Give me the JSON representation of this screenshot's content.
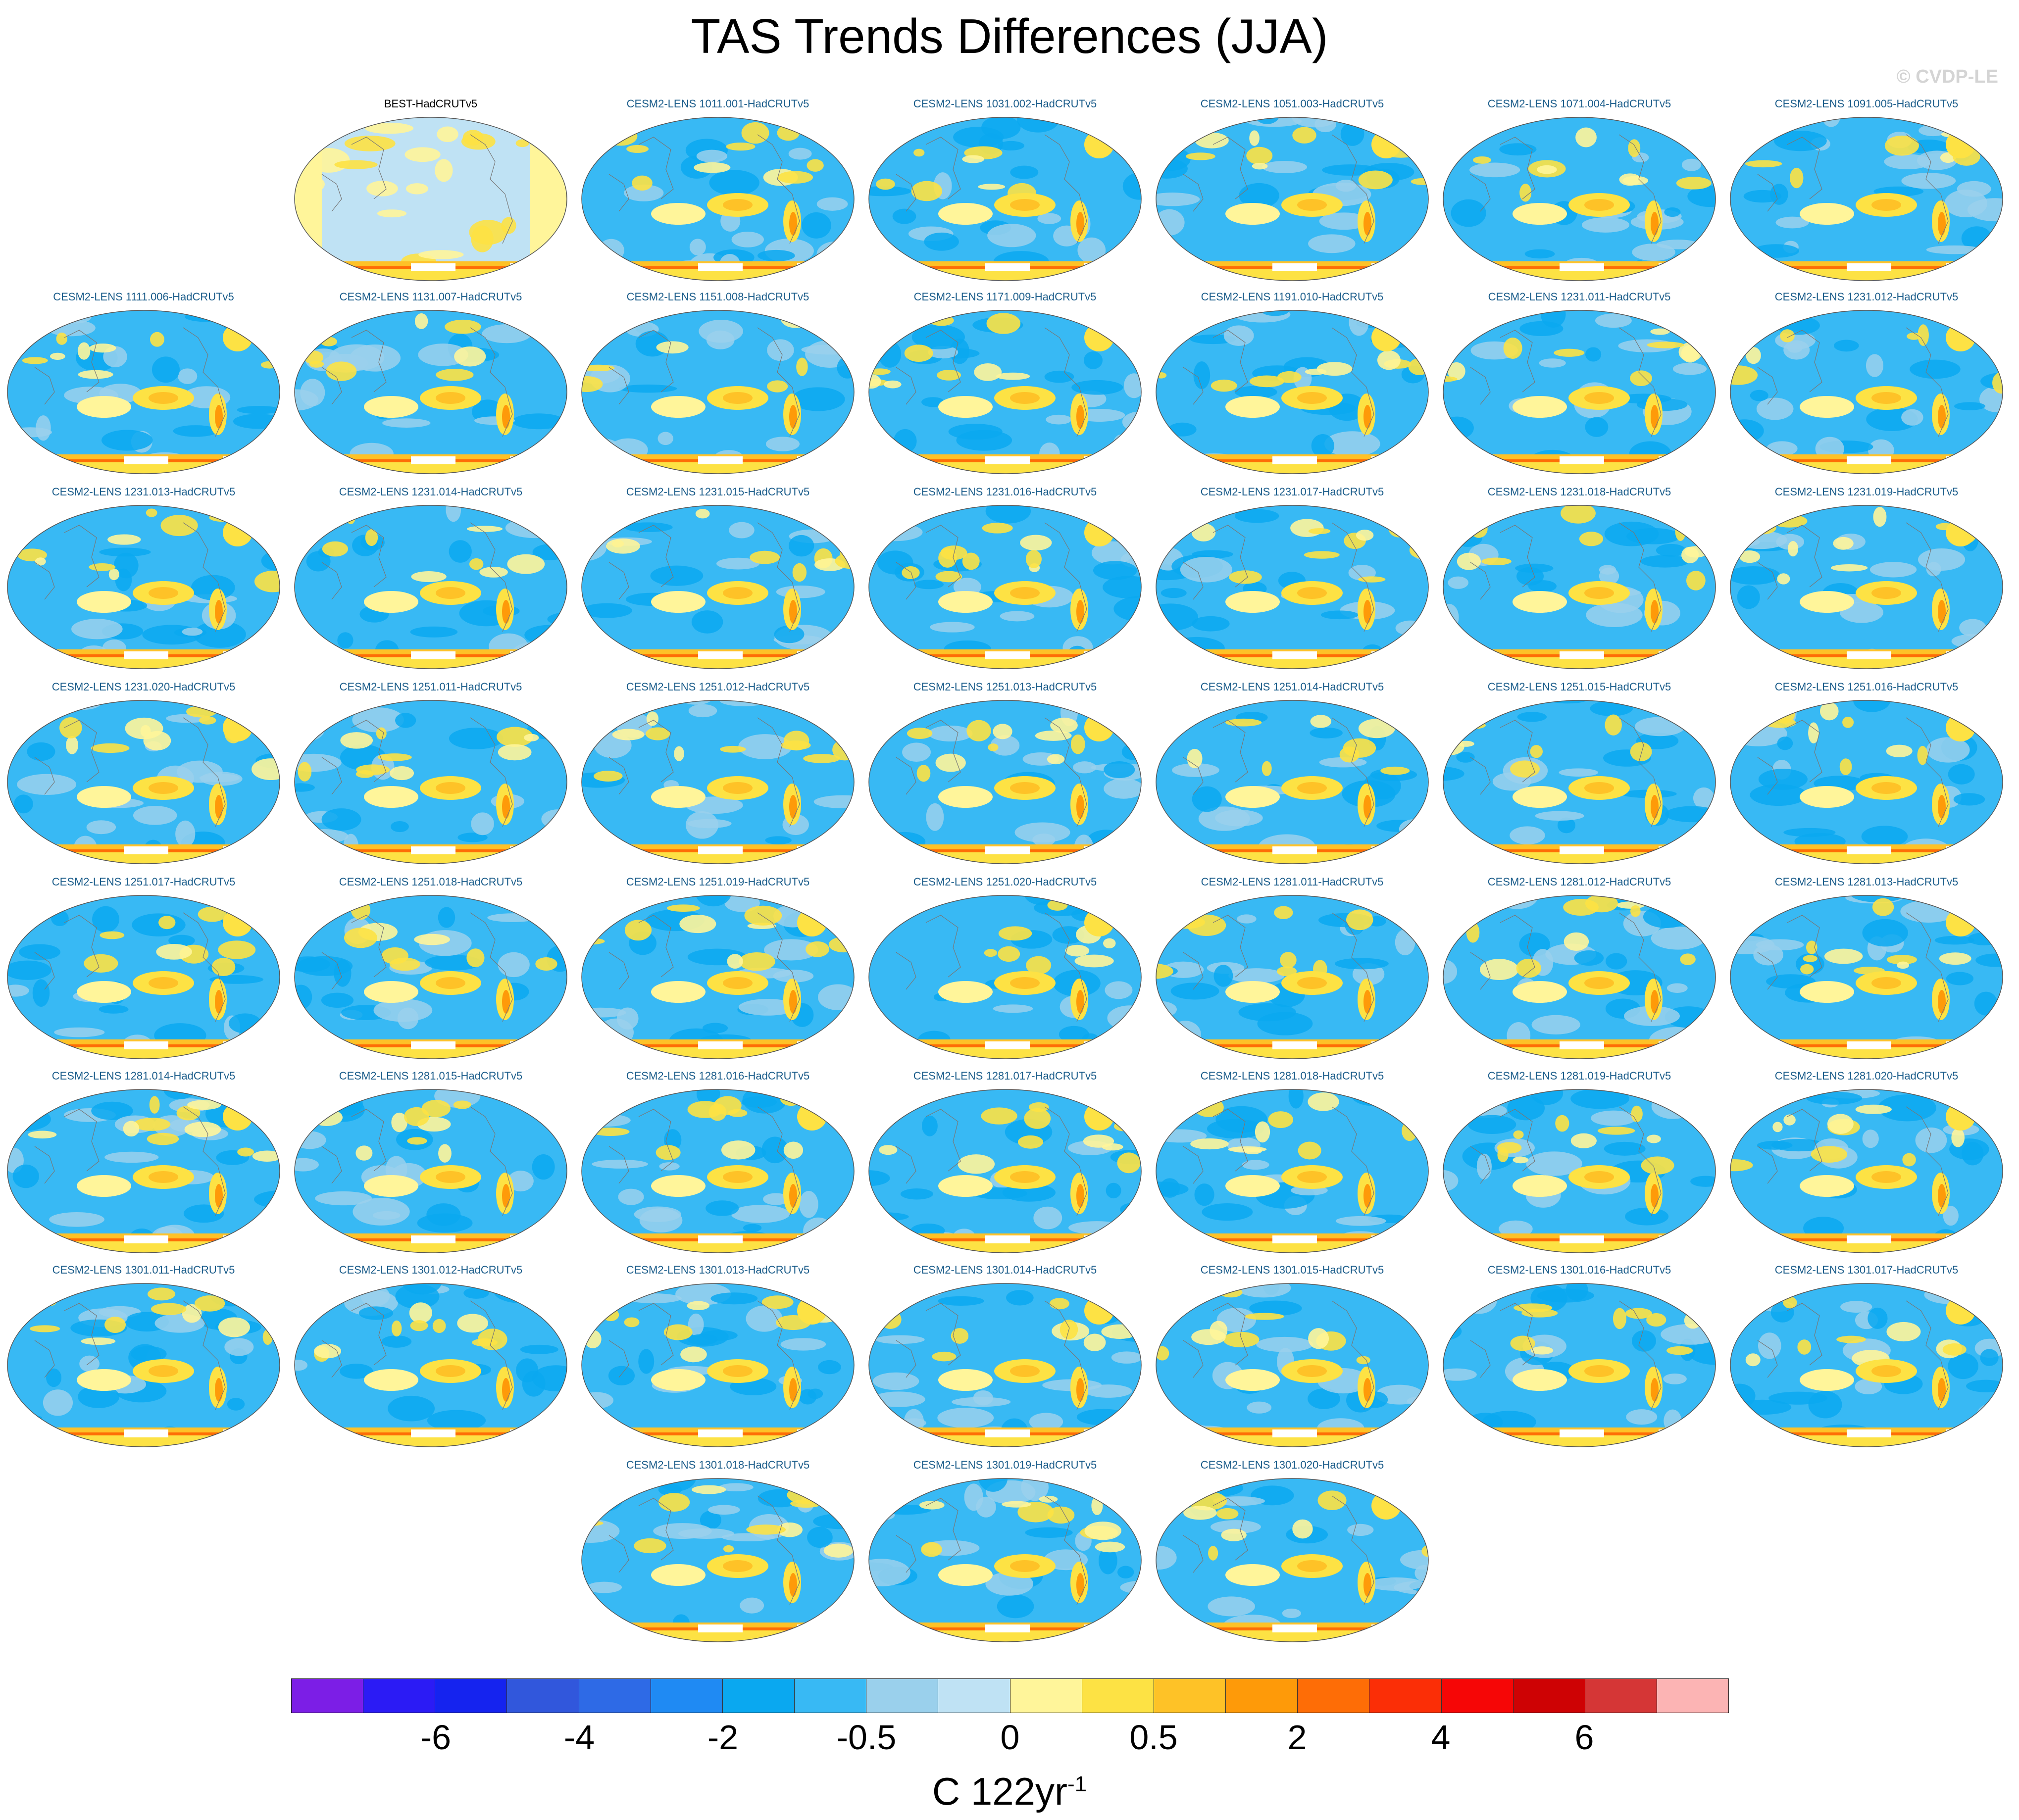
{
  "title": "TAS Trends Differences (JJA)",
  "watermark": "© CVDP-LE",
  "colorbar": {
    "ticks": [
      "-6",
      "-4",
      "-2",
      "-0.5",
      "0",
      "0.5",
      "2",
      "4",
      "6"
    ],
    "units_base": "C 122yr",
    "units_exp": "-1",
    "colors": [
      "#7c1ee6",
      "#2b1bf5",
      "#1523ef",
      "#3157dc",
      "#2e6ae6",
      "#1f8af3",
      "#0aa8f0",
      "#38b9f4",
      "#9ad0ec",
      "#bfe2f4",
      "#fff59a",
      "#fde244",
      "#fec227",
      "#fe9a09",
      "#fe6d06",
      "#fb2e06",
      "#f60606",
      "#ce0204",
      "#d53636",
      "#fcb4b4"
    ]
  },
  "panels": [
    {
      "label": "BEST-HadCRUTv5",
      "kind": "obs"
    },
    {
      "label": "CESM2-LENS 1011.001-HadCRUTv5",
      "kind": "model"
    },
    {
      "label": "CESM2-LENS 1031.002-HadCRUTv5",
      "kind": "model"
    },
    {
      "label": "CESM2-LENS 1051.003-HadCRUTv5",
      "kind": "model"
    },
    {
      "label": "CESM2-LENS 1071.004-HadCRUTv5",
      "kind": "model"
    },
    {
      "label": "CESM2-LENS 1091.005-HadCRUTv5",
      "kind": "model"
    },
    {
      "label": "CESM2-LENS 1111.006-HadCRUTv5",
      "kind": "model"
    },
    {
      "label": "CESM2-LENS 1131.007-HadCRUTv5",
      "kind": "model"
    },
    {
      "label": "CESM2-LENS 1151.008-HadCRUTv5",
      "kind": "model"
    },
    {
      "label": "CESM2-LENS 1171.009-HadCRUTv5",
      "kind": "model"
    },
    {
      "label": "CESM2-LENS 1191.010-HadCRUTv5",
      "kind": "model"
    },
    {
      "label": "CESM2-LENS 1231.011-HadCRUTv5",
      "kind": "model"
    },
    {
      "label": "CESM2-LENS 1231.012-HadCRUTv5",
      "kind": "model"
    },
    {
      "label": "CESM2-LENS 1231.013-HadCRUTv5",
      "kind": "model"
    },
    {
      "label": "CESM2-LENS 1231.014-HadCRUTv5",
      "kind": "model"
    },
    {
      "label": "CESM2-LENS 1231.015-HadCRUTv5",
      "kind": "model"
    },
    {
      "label": "CESM2-LENS 1231.016-HadCRUTv5",
      "kind": "model"
    },
    {
      "label": "CESM2-LENS 1231.017-HadCRUTv5",
      "kind": "model"
    },
    {
      "label": "CESM2-LENS 1231.018-HadCRUTv5",
      "kind": "model"
    },
    {
      "label": "CESM2-LENS 1231.019-HadCRUTv5",
      "kind": "model"
    },
    {
      "label": "CESM2-LENS 1231.020-HadCRUTv5",
      "kind": "model"
    },
    {
      "label": "CESM2-LENS 1251.011-HadCRUTv5",
      "kind": "model"
    },
    {
      "label": "CESM2-LENS 1251.012-HadCRUTv5",
      "kind": "model"
    },
    {
      "label": "CESM2-LENS 1251.013-HadCRUTv5",
      "kind": "model"
    },
    {
      "label": "CESM2-LENS 1251.014-HadCRUTv5",
      "kind": "model"
    },
    {
      "label": "CESM2-LENS 1251.015-HadCRUTv5",
      "kind": "model"
    },
    {
      "label": "CESM2-LENS 1251.016-HadCRUTv5",
      "kind": "model"
    },
    {
      "label": "CESM2-LENS 1251.017-HadCRUTv5",
      "kind": "model"
    },
    {
      "label": "CESM2-LENS 1251.018-HadCRUTv5",
      "kind": "model"
    },
    {
      "label": "CESM2-LENS 1251.019-HadCRUTv5",
      "kind": "model"
    },
    {
      "label": "CESM2-LENS 1251.020-HadCRUTv5",
      "kind": "model"
    },
    {
      "label": "CESM2-LENS 1281.011-HadCRUTv5",
      "kind": "model"
    },
    {
      "label": "CESM2-LENS 1281.012-HadCRUTv5",
      "kind": "model"
    },
    {
      "label": "CESM2-LENS 1281.013-HadCRUTv5",
      "kind": "model"
    },
    {
      "label": "CESM2-LENS 1281.014-HadCRUTv5",
      "kind": "model"
    },
    {
      "label": "CESM2-LENS 1281.015-HadCRUTv5",
      "kind": "model"
    },
    {
      "label": "CESM2-LENS 1281.016-HadCRUTv5",
      "kind": "model"
    },
    {
      "label": "CESM2-LENS 1281.017-HadCRUTv5",
      "kind": "model"
    },
    {
      "label": "CESM2-LENS 1281.018-HadCRUTv5",
      "kind": "model"
    },
    {
      "label": "CESM2-LENS 1281.019-HadCRUTv5",
      "kind": "model"
    },
    {
      "label": "CESM2-LENS 1281.020-HadCRUTv5",
      "kind": "model"
    },
    {
      "label": "CESM2-LENS 1301.011-HadCRUTv5",
      "kind": "model"
    },
    {
      "label": "CESM2-LENS 1301.012-HadCRUTv5",
      "kind": "model"
    },
    {
      "label": "CESM2-LENS 1301.013-HadCRUTv5",
      "kind": "model"
    },
    {
      "label": "CESM2-LENS 1301.014-HadCRUTv5",
      "kind": "model"
    },
    {
      "label": "CESM2-LENS 1301.015-HadCRUTv5",
      "kind": "model"
    },
    {
      "label": "CESM2-LENS 1301.016-HadCRUTv5",
      "kind": "model"
    },
    {
      "label": "CESM2-LENS 1301.017-HadCRUTv5",
      "kind": "model"
    },
    {
      "label": "CESM2-LENS 1301.018-HadCRUTv5",
      "kind": "model"
    },
    {
      "label": "CESM2-LENS 1301.019-HadCRUTv5",
      "kind": "model"
    },
    {
      "label": "CESM2-LENS 1301.020-HadCRUTv5",
      "kind": "model"
    }
  ]
}
